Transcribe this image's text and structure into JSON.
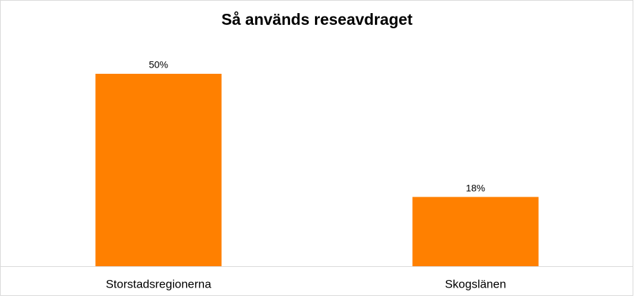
{
  "chart_data": {
    "type": "bar",
    "title": "Så används reseavdraget",
    "categories": [
      "Storstadsregionerna",
      "Skogslänen"
    ],
    "values": [
      50,
      18
    ],
    "value_labels": [
      "50%",
      "18%"
    ],
    "color": "#ff8000"
  }
}
